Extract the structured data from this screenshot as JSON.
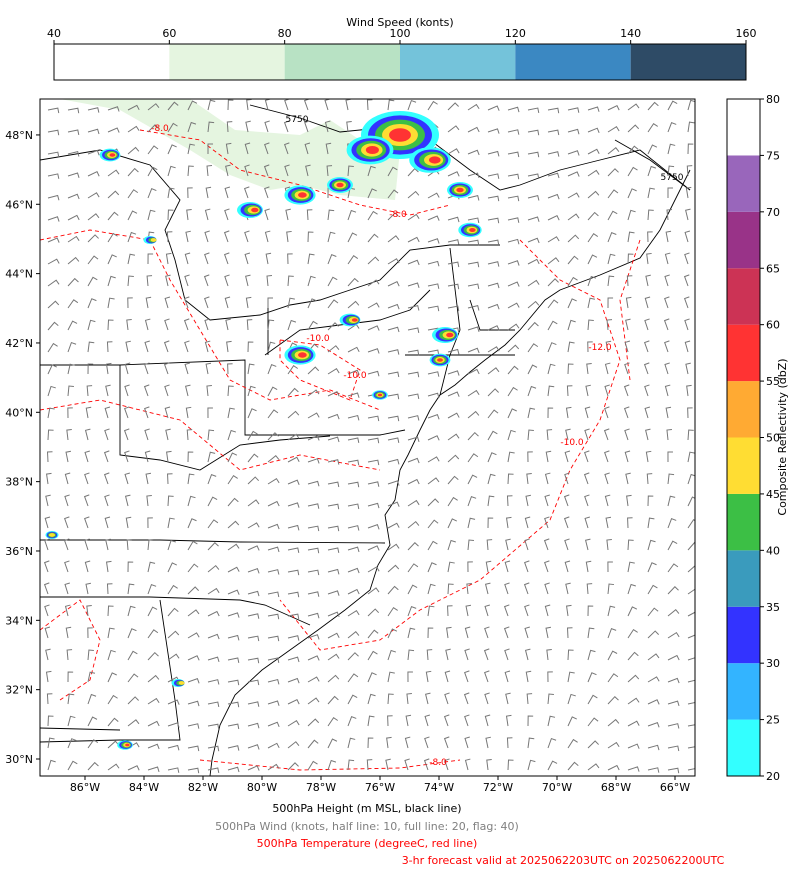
{
  "wind_colorbar": {
    "label": "Wind Speed (konts)",
    "ticks": [
      40,
      60,
      80,
      100,
      120,
      140,
      160
    ],
    "colors": [
      "#ffffff",
      "#e5f5e0",
      "#b8e2c4",
      "#74c3da",
      "#3b88c2",
      "#2e4b66"
    ]
  },
  "reflectivity_colorbar": {
    "label": "Composite Reflectivity (dbZ)",
    "ticks": [
      20,
      25,
      30,
      35,
      40,
      45,
      50,
      55,
      60,
      65,
      70,
      75,
      80
    ],
    "colors": [
      "#33ffff",
      "#33b4ff",
      "#3333ff",
      "#3a9bbd",
      "#3cbf45",
      "#ffdd33",
      "#ffaa33",
      "#ff3333",
      "#cc3355",
      "#993388",
      "#9966bb",
      "#ffffff"
    ]
  },
  "map": {
    "lat_labels": [
      {
        "value": 48,
        "label": "48°N"
      },
      {
        "value": 46,
        "label": "46°N"
      },
      {
        "value": 44,
        "label": "44°N"
      },
      {
        "value": 42,
        "label": "42°N"
      },
      {
        "value": 40,
        "label": "40°N"
      },
      {
        "value": 38,
        "label": "38°N"
      },
      {
        "value": 36,
        "label": "36°N"
      },
      {
        "value": 34,
        "label": "34°N"
      },
      {
        "value": 32,
        "label": "32°N"
      },
      {
        "value": 30,
        "label": "30°N"
      }
    ],
    "lon_labels": [
      {
        "value": -86,
        "label": "86°W"
      },
      {
        "value": -84,
        "label": "84°W"
      },
      {
        "value": -82,
        "label": "82°W"
      },
      {
        "value": -80,
        "label": "80°W"
      },
      {
        "value": -78,
        "label": "78°W"
      },
      {
        "value": -76,
        "label": "76°W"
      },
      {
        "value": -74,
        "label": "74°W"
      },
      {
        "value": -72,
        "label": "72°W"
      },
      {
        "value": -70,
        "label": "70°W"
      },
      {
        "value": -68,
        "label": "68°W"
      },
      {
        "value": -66,
        "label": "66°W"
      }
    ],
    "contour_labels": [
      "5750",
      "5750",
      "-8.0",
      "-8.0",
      "-10.0",
      "-10.0",
      "-12.0",
      "-10.0",
      "-8.0"
    ]
  },
  "captions": [
    {
      "text": "500hPa Height (m MSL, black line)",
      "color": "#000000"
    },
    {
      "text": "500hPa Wind (knots, half line: 10, full line: 20, flag: 40)",
      "color": "#808080"
    },
    {
      "text": "500hPa Temperature (degreeC, red line)",
      "color": "#ff0000"
    },
    {
      "text": "3-hr forecast valid at 2025062203UTC on 2025062200UTC",
      "color": "#ff0000"
    }
  ]
}
